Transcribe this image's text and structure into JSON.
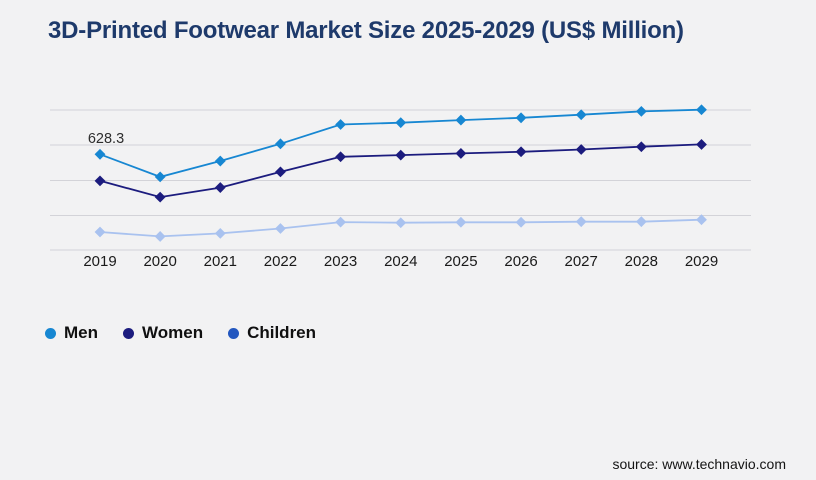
{
  "footer": {
    "source": "source: www.technavio.com"
  },
  "colors": {
    "background": "#f2f2f3",
    "title": "#1e3a6b",
    "gridline": "#d3d3d8",
    "men": "#1787d2",
    "women": "#1c1c7e",
    "children_line": "#a9c2ef",
    "children_legend": "#2357bf"
  },
  "chart_data": {
    "type": "line",
    "title": "3D-Printed Footwear Market Size 2025-2029 (US$ Million)",
    "x": [
      "2019",
      "2020",
      "2021",
      "2022",
      "2023",
      "2024",
      "2025",
      "2026",
      "2027",
      "2028",
      "2029"
    ],
    "series": [
      {
        "name": "Men",
        "color": "#1787d2",
        "legend_color": "#1787d2",
        "values": [
          628.3,
          480,
          584,
          697,
          824,
          836,
          853,
          868,
          888,
          910,
          921
        ]
      },
      {
        "name": "Women",
        "color": "#1c1c7e",
        "legend_color": "#1c1c7e",
        "values": [
          454,
          347,
          410,
          513,
          612,
          623,
          634,
          645,
          660,
          678,
          693
        ]
      },
      {
        "name": "Children",
        "color": "#a9c2ef",
        "legend_color": "#2357bf",
        "values": [
          118,
          89,
          109,
          141,
          183,
          179,
          182,
          182,
          186,
          186,
          199
        ]
      }
    ],
    "annotation": {
      "text": "628.3",
      "series": "Men",
      "x": "2019",
      "value": 628.3
    },
    "xlabel": "",
    "ylabel": "",
    "ylim": [
      0,
      1000
    ],
    "grid": true,
    "gridline_count": 5,
    "marker": "diamond",
    "legend_position": "bottom-left"
  }
}
